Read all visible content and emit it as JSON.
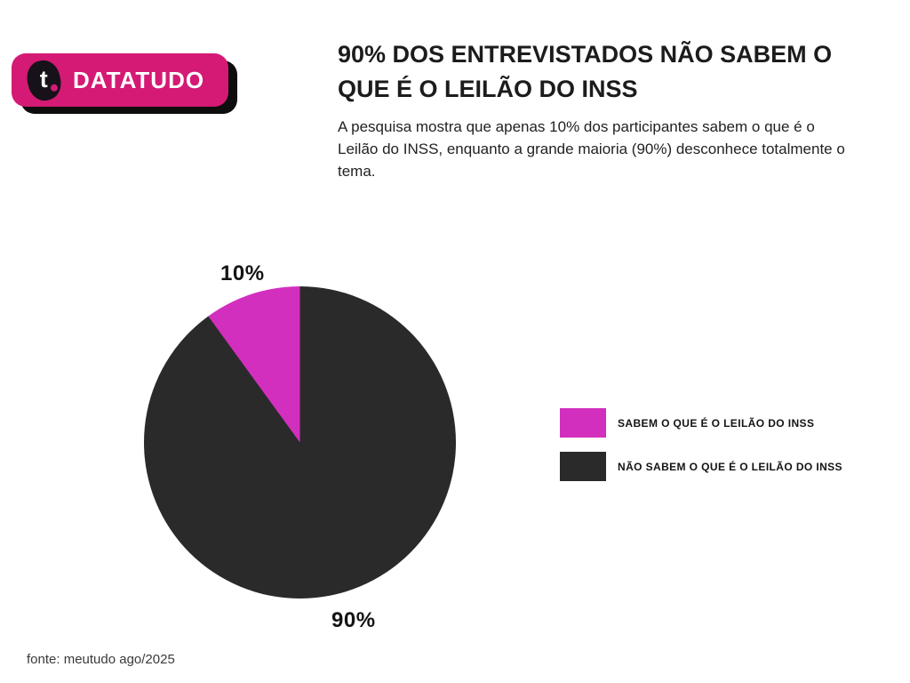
{
  "logo": {
    "mark_letter": "t",
    "brand": "DATATUDO",
    "badge_color": "#d41a74",
    "mark_color": "#17121a"
  },
  "header": {
    "title_lines": [
      "90% DOS ENTREVISTADOS NÃO SABEM O",
      "QUE É O LEILÃO DO INSS"
    ],
    "subtitle": "A pesquisa mostra que apenas 10% dos participantes sabem o que é o Leilão do INSS, enquanto a grande maioria (90%) desconhece totalmente o tema."
  },
  "chart_data": {
    "type": "pie",
    "title": "90% DOS ENTREVISTADOS NÃO SABEM O QUE É O LEILÃO DO INSS",
    "slices": [
      {
        "label": "SABEM O QUE É O LEILÃO DO INSS",
        "value": 10,
        "data_label": "10%",
        "color": "#d22fbe"
      },
      {
        "label": "NÃO SABEM O QUE É O LEILÃO DO INSS",
        "value": 90,
        "data_label": "90%",
        "color": "#2b2a2b"
      }
    ],
    "start_angle_deg": 324,
    "legend_position": "right",
    "grid": false
  },
  "footer": {
    "source": "fonte: meutudo ago/2025"
  }
}
